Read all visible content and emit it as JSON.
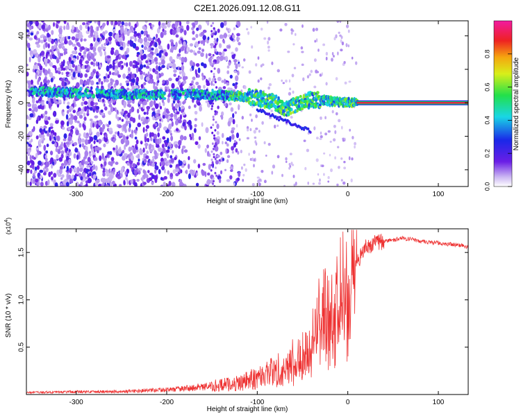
{
  "figure_title": "C2E1.2026.091.12.08.G11",
  "colors": {
    "snr_line": "#ee3333",
    "zero_line": "#e8194a",
    "axis": "#000000",
    "purple_dark": "#4a10d8",
    "purple_light": "#d9c8f5"
  },
  "chart_data": [
    {
      "type": "heatmap",
      "title": "C2E1.2026.091.12.08.G11",
      "xlabel": "Height of straight line (km)",
      "ylabel": "Frequency (Hz)",
      "xlim": [
        -355,
        133
      ],
      "ylim": [
        -50,
        49
      ],
      "x_ticks": [
        -300,
        -200,
        -100,
        0,
        100
      ],
      "y_ticks": [
        -40,
        -20,
        0,
        20,
        40
      ],
      "colorbar": {
        "label": "Normalized spectral amplitude",
        "range": [
          0,
          1
        ],
        "ticks": [
          0.0,
          0.2,
          0.4,
          0.6,
          0.8
        ],
        "colormap": "rainbow (purple-blue-cyan-green-yellow-red-magenta)"
      },
      "features": {
        "noise_region_km": [
          -355,
          -140
        ],
        "signal_track": {
          "x": [
            -350,
            -300,
            -250,
            -200,
            -150,
            -120,
            -100,
            -80,
            -70,
            -60,
            -40,
            -20,
            0,
            10
          ],
          "freq_hz": [
            7,
            6,
            5,
            5,
            5,
            4,
            3,
            0,
            -4,
            -2,
            2,
            1,
            0,
            0
          ]
        },
        "steady_tone_km": [
          10,
          133
        ],
        "steady_tone_freq_hz": 0
      }
    },
    {
      "type": "line",
      "xlabel": "Height of straight line (km)",
      "ylabel": "SNR (10 * v/v)",
      "y_scale_label": "(x10",
      "y_scale_exponent": "4",
      "xlim": [
        -355,
        133
      ],
      "ylim": [
        0,
        17500
      ],
      "x_ticks": [
        -300,
        -200,
        -100,
        0,
        100
      ],
      "y_ticks": [
        5000,
        10000,
        15000
      ],
      "y_tick_labels": [
        "0.5",
        "1.0",
        "1.5"
      ],
      "series": [
        {
          "name": "SNR",
          "x": [
            -355,
            -300,
            -250,
            -200,
            -170,
            -150,
            -120,
            -100,
            -80,
            -60,
            -50,
            -40,
            -30,
            -20,
            -10,
            0,
            10,
            20,
            30,
            40,
            50,
            60,
            70,
            80,
            100,
            120,
            133
          ],
          "y": [
            200,
            300,
            300,
            500,
            700,
            900,
            1200,
            1800,
            2500,
            3500,
            4500,
            6500,
            9000,
            10500,
            11500,
            12500,
            14000,
            15500,
            16000,
            16200,
            16300,
            16500,
            16400,
            16200,
            16000,
            15800,
            15600
          ]
        }
      ]
    }
  ]
}
